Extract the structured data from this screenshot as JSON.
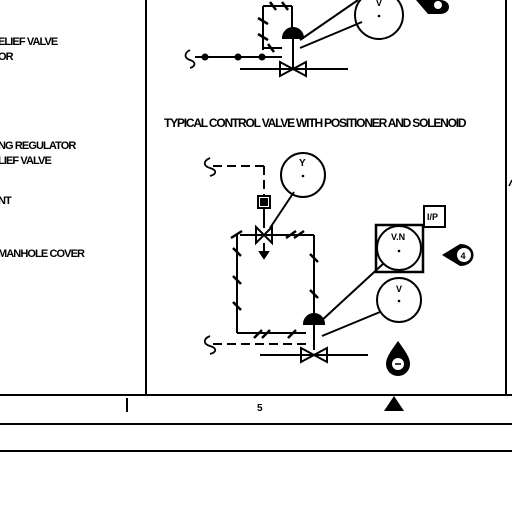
{
  "left_legend": [
    "ELIEF VALVE",
    "OR",
    "NG REGULATOR",
    "LIEF VALVE",
    "NT",
    "MANHOLE COVER"
  ],
  "heading": "TYPICAL CONTROL VALVE WITH POSITIONER AND SOLENOID",
  "instruments": {
    "top_y": "Y",
    "vin": "V.N",
    "lower_v": "V",
    "ip": "I/P",
    "top_partial": "V"
  },
  "callouts": {
    "right": "4"
  },
  "title_strip": {
    "sheet_number": "5"
  }
}
